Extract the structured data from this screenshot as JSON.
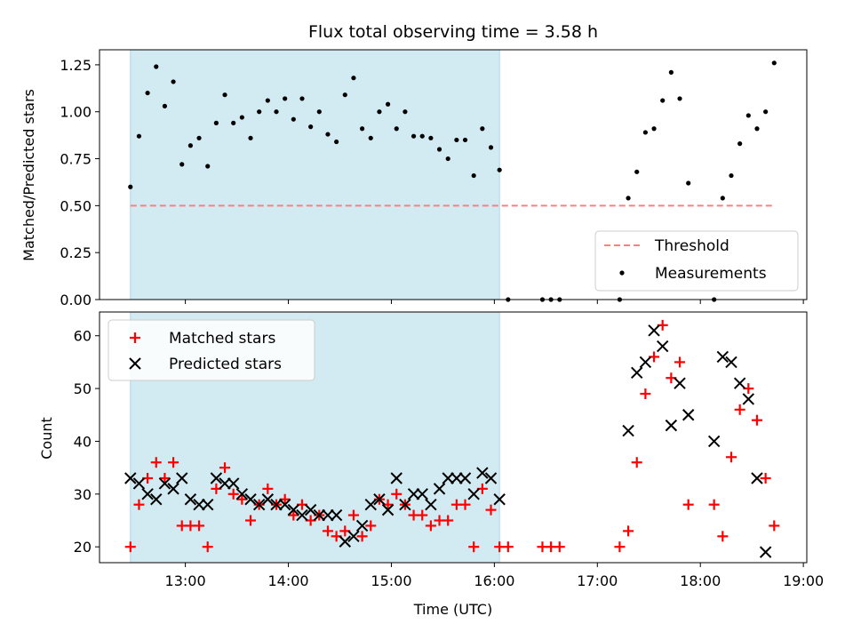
{
  "chart_data": [
    {
      "type": "scatter",
      "title": "Flux total observing time = 3.58 h",
      "ylabel": "Matched/Predicted stars",
      "xlabel": "",
      "xlim": [
        "12:10",
        "19:02"
      ],
      "ylim": [
        0,
        1.33
      ],
      "yticks": [
        "0.00",
        "0.25",
        "0.50",
        "0.75",
        "1.00",
        "1.25"
      ],
      "ytick_values": [
        0,
        0.25,
        0.5,
        0.75,
        1.0,
        1.25
      ],
      "xtick_values": [
        "13:00",
        "14:00",
        "15:00",
        "16:00",
        "17:00",
        "18:00",
        "19:00"
      ],
      "shaded_region": {
        "x_start": "12:28",
        "x_end": "16:03",
        "color": "#add8e6"
      },
      "threshold": {
        "name": "Threshold",
        "value": 0.5,
        "x_start": "12:28",
        "x_end": "18:42",
        "color": "#ff7f7f"
      },
      "legend": {
        "location": "lower-right",
        "entries": [
          "Threshold",
          "Measurements"
        ]
      },
      "series": [
        {
          "name": "Measurements",
          "color": "#000000",
          "points": [
            [
              "12:28",
              0.6
            ],
            [
              "12:33",
              0.87
            ],
            [
              "12:38",
              1.1
            ],
            [
              "12:43",
              1.24
            ],
            [
              "12:48",
              1.03
            ],
            [
              "12:53",
              1.16
            ],
            [
              "12:58",
              0.72
            ],
            [
              "13:03",
              0.82
            ],
            [
              "13:08",
              0.86
            ],
            [
              "13:13",
              0.71
            ],
            [
              "13:18",
              0.94
            ],
            [
              "13:23",
              1.09
            ],
            [
              "13:28",
              0.94
            ],
            [
              "13:33",
              0.97
            ],
            [
              "13:38",
              0.86
            ],
            [
              "13:43",
              1.0
            ],
            [
              "13:48",
              1.06
            ],
            [
              "13:53",
              1.0
            ],
            [
              "13:58",
              1.07
            ],
            [
              "14:03",
              0.96
            ],
            [
              "14:08",
              1.07
            ],
            [
              "14:13",
              0.92
            ],
            [
              "14:18",
              1.0
            ],
            [
              "14:23",
              0.88
            ],
            [
              "14:28",
              0.84
            ],
            [
              "14:33",
              1.09
            ],
            [
              "14:38",
              1.18
            ],
            [
              "14:43",
              0.91
            ],
            [
              "14:48",
              0.86
            ],
            [
              "14:53",
              1.0
            ],
            [
              "14:58",
              1.04
            ],
            [
              "15:03",
              0.91
            ],
            [
              "15:08",
              1.0
            ],
            [
              "15:13",
              0.87
            ],
            [
              "15:18",
              0.87
            ],
            [
              "15:23",
              0.86
            ],
            [
              "15:28",
              0.8
            ],
            [
              "15:33",
              0.75
            ],
            [
              "15:38",
              0.85
            ],
            [
              "15:43",
              0.85
            ],
            [
              "15:48",
              0.66
            ],
            [
              "15:53",
              0.91
            ],
            [
              "15:58",
              0.81
            ],
            [
              "16:03",
              0.69
            ],
            [
              "16:08",
              0.0
            ],
            [
              "16:28",
              0.0
            ],
            [
              "16:33",
              0.0
            ],
            [
              "16:38",
              0.0
            ],
            [
              "17:13",
              0.0
            ],
            [
              "17:18",
              0.54
            ],
            [
              "17:23",
              0.68
            ],
            [
              "17:28",
              0.89
            ],
            [
              "17:33",
              0.91
            ],
            [
              "17:38",
              1.06
            ],
            [
              "17:43",
              1.21
            ],
            [
              "17:48",
              1.07
            ],
            [
              "17:53",
              0.62
            ],
            [
              "18:08",
              0.0
            ],
            [
              "18:13",
              0.54
            ],
            [
              "18:18",
              0.66
            ],
            [
              "18:23",
              0.83
            ],
            [
              "18:28",
              0.98
            ],
            [
              "18:33",
              0.91
            ],
            [
              "18:38",
              1.0
            ],
            [
              "18:43",
              1.26
            ]
          ]
        }
      ]
    },
    {
      "type": "scatter",
      "title": "",
      "ylabel": "Count",
      "xlabel": "Time (UTC)",
      "xlim": [
        "12:10",
        "19:02"
      ],
      "ylim": [
        17,
        64.5
      ],
      "yticks": [
        "20",
        "30",
        "40",
        "50",
        "60"
      ],
      "ytick_values": [
        20,
        30,
        40,
        50,
        60
      ],
      "xticks": [
        "13:00",
        "14:00",
        "15:00",
        "16:00",
        "17:00",
        "18:00",
        "19:00"
      ],
      "xtick_values": [
        "13:00",
        "14:00",
        "15:00",
        "16:00",
        "17:00",
        "18:00",
        "19:00"
      ],
      "shaded_region": {
        "x_start": "12:28",
        "x_end": "16:03",
        "color": "#add8e6"
      },
      "legend": {
        "location": "top-left",
        "entries": [
          "Matched stars",
          "Predicted stars"
        ]
      },
      "series": [
        {
          "name": "Matched stars",
          "marker": "plus",
          "color": "#ff0000",
          "points": [
            [
              "12:28",
              20
            ],
            [
              "12:33",
              28
            ],
            [
              "12:38",
              33
            ],
            [
              "12:43",
              36
            ],
            [
              "12:48",
              33
            ],
            [
              "12:53",
              36
            ],
            [
              "12:58",
              24
            ],
            [
              "13:03",
              24
            ],
            [
              "13:08",
              24
            ],
            [
              "13:13",
              20
            ],
            [
              "13:18",
              31
            ],
            [
              "13:23",
              35
            ],
            [
              "13:28",
              30
            ],
            [
              "13:33",
              29
            ],
            [
              "13:38",
              25
            ],
            [
              "13:43",
              28
            ],
            [
              "13:48",
              31
            ],
            [
              "13:53",
              28
            ],
            [
              "13:58",
              29
            ],
            [
              "14:03",
              26
            ],
            [
              "14:08",
              28
            ],
            [
              "14:13",
              25
            ],
            [
              "14:18",
              26
            ],
            [
              "14:23",
              23
            ],
            [
              "14:28",
              22
            ],
            [
              "14:33",
              23
            ],
            [
              "14:38",
              26
            ],
            [
              "14:43",
              22
            ],
            [
              "14:48",
              24
            ],
            [
              "14:53",
              29
            ],
            [
              "14:58",
              28
            ],
            [
              "15:03",
              30
            ],
            [
              "15:08",
              28
            ],
            [
              "15:13",
              26
            ],
            [
              "15:18",
              26
            ],
            [
              "15:23",
              24
            ],
            [
              "15:28",
              25
            ],
            [
              "15:33",
              25
            ],
            [
              "15:38",
              28
            ],
            [
              "15:43",
              28
            ],
            [
              "15:48",
              20
            ],
            [
              "15:53",
              31
            ],
            [
              "15:58",
              27
            ],
            [
              "16:03",
              20
            ],
            [
              "16:08",
              20
            ],
            [
              "16:28",
              20
            ],
            [
              "16:33",
              20
            ],
            [
              "16:38",
              20
            ],
            [
              "17:13",
              20
            ],
            [
              "17:18",
              23
            ],
            [
              "17:23",
              36
            ],
            [
              "17:28",
              49
            ],
            [
              "17:33",
              56
            ],
            [
              "17:38",
              62
            ],
            [
              "17:43",
              52
            ],
            [
              "17:48",
              55
            ],
            [
              "17:53",
              28
            ],
            [
              "18:08",
              28
            ],
            [
              "18:13",
              22
            ],
            [
              "18:18",
              37
            ],
            [
              "18:23",
              46
            ],
            [
              "18:28",
              50
            ],
            [
              "18:33",
              44
            ],
            [
              "18:38",
              33
            ],
            [
              "18:43",
              24
            ]
          ]
        },
        {
          "name": "Predicted stars",
          "marker": "x",
          "color": "#000000",
          "points": [
            [
              "12:28",
              33
            ],
            [
              "12:33",
              32
            ],
            [
              "12:38",
              30
            ],
            [
              "12:43",
              29
            ],
            [
              "12:48",
              32
            ],
            [
              "12:53",
              31
            ],
            [
              "12:58",
              33
            ],
            [
              "13:03",
              29
            ],
            [
              "13:08",
              28
            ],
            [
              "13:13",
              28
            ],
            [
              "13:18",
              33
            ],
            [
              "13:23",
              32
            ],
            [
              "13:28",
              32
            ],
            [
              "13:33",
              30
            ],
            [
              "13:38",
              29
            ],
            [
              "13:43",
              28
            ],
            [
              "13:48",
              29
            ],
            [
              "13:53",
              28
            ],
            [
              "13:58",
              28
            ],
            [
              "14:03",
              27
            ],
            [
              "14:08",
              26
            ],
            [
              "14:13",
              27
            ],
            [
              "14:18",
              26
            ],
            [
              "14:23",
              26
            ],
            [
              "14:28",
              26
            ],
            [
              "14:33",
              21
            ],
            [
              "14:38",
              22
            ],
            [
              "14:43",
              24
            ],
            [
              "14:48",
              28
            ],
            [
              "14:53",
              29
            ],
            [
              "14:58",
              27
            ],
            [
              "15:03",
              33
            ],
            [
              "15:08",
              28
            ],
            [
              "15:13",
              30
            ],
            [
              "15:18",
              30
            ],
            [
              "15:23",
              28
            ],
            [
              "15:28",
              31
            ],
            [
              "15:33",
              33
            ],
            [
              "15:38",
              33
            ],
            [
              "15:43",
              33
            ],
            [
              "15:48",
              30
            ],
            [
              "15:53",
              34
            ],
            [
              "15:58",
              33
            ],
            [
              "16:03",
              29
            ],
            [
              "17:18",
              42
            ],
            [
              "17:23",
              53
            ],
            [
              "17:28",
              55
            ],
            [
              "17:33",
              61
            ],
            [
              "17:38",
              58
            ],
            [
              "17:43",
              43
            ],
            [
              "17:48",
              51
            ],
            [
              "17:53",
              45
            ],
            [
              "18:08",
              40
            ],
            [
              "18:13",
              56
            ],
            [
              "18:18",
              55
            ],
            [
              "18:23",
              51
            ],
            [
              "18:28",
              48
            ],
            [
              "18:33",
              33
            ],
            [
              "18:38",
              19
            ]
          ]
        }
      ]
    }
  ]
}
